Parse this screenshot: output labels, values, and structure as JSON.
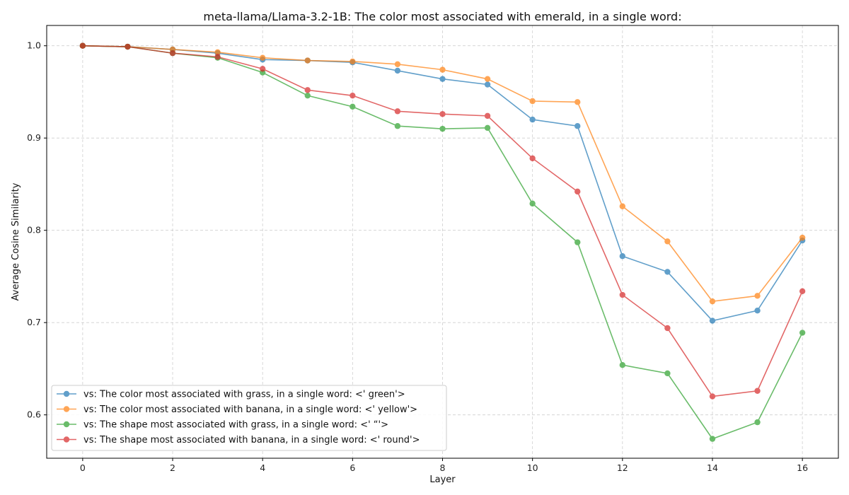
{
  "chart_data": {
    "type": "line",
    "title": "meta-llama/Llama-3.2-1B: The color most associated with emerald, in a single word:",
    "xlabel": "Layer",
    "ylabel": "Average Cosine Similarity",
    "xlim": [
      -0.8,
      16.8
    ],
    "ylim": [
      0.553,
      1.022
    ],
    "xticks": [
      0,
      2,
      4,
      6,
      8,
      10,
      12,
      14,
      16
    ],
    "yticks": [
      0.6,
      0.7,
      0.8,
      0.9,
      1.0
    ],
    "ytick_labels": [
      "0.6",
      "0.7",
      "0.8",
      "0.9",
      "1.0"
    ],
    "grid": true,
    "legend_position": "lower-left",
    "x": [
      0,
      1,
      2,
      3,
      4,
      5,
      6,
      7,
      8,
      9,
      10,
      11,
      12,
      13,
      14,
      15,
      16
    ],
    "series": [
      {
        "name": "vs: The color most associated with grass, in a single word: <' green'>",
        "color": "#1f77b4",
        "values": [
          1.0,
          0.999,
          0.996,
          0.992,
          0.985,
          0.984,
          0.982,
          0.973,
          0.964,
          0.958,
          0.92,
          0.913,
          0.772,
          0.755,
          0.702,
          0.713,
          0.789
        ]
      },
      {
        "name": "vs: The color most associated with banana, in a single word: <' yellow'>",
        "color": "#ff7f0e",
        "values": [
          1.0,
          0.999,
          0.996,
          0.993,
          0.987,
          0.984,
          0.983,
          0.98,
          0.974,
          0.964,
          0.94,
          0.939,
          0.826,
          0.788,
          0.723,
          0.729,
          0.792
        ]
      },
      {
        "name": "vs: The shape most associated with grass, in a single word: <' “'>",
        "color": "#2ca02c",
        "values": [
          1.0,
          0.999,
          0.992,
          0.987,
          0.971,
          0.946,
          0.934,
          0.913,
          0.91,
          0.911,
          0.829,
          0.787,
          0.654,
          0.645,
          0.574,
          0.592,
          0.689
        ]
      },
      {
        "name": "vs: The shape most associated with banana, in a single word: <' round'>",
        "color": "#d62728",
        "values": [
          1.0,
          0.999,
          0.992,
          0.988,
          0.975,
          0.952,
          0.946,
          0.929,
          0.926,
          0.924,
          0.878,
          0.842,
          0.73,
          0.694,
          0.62,
          0.626,
          0.734
        ]
      }
    ]
  }
}
